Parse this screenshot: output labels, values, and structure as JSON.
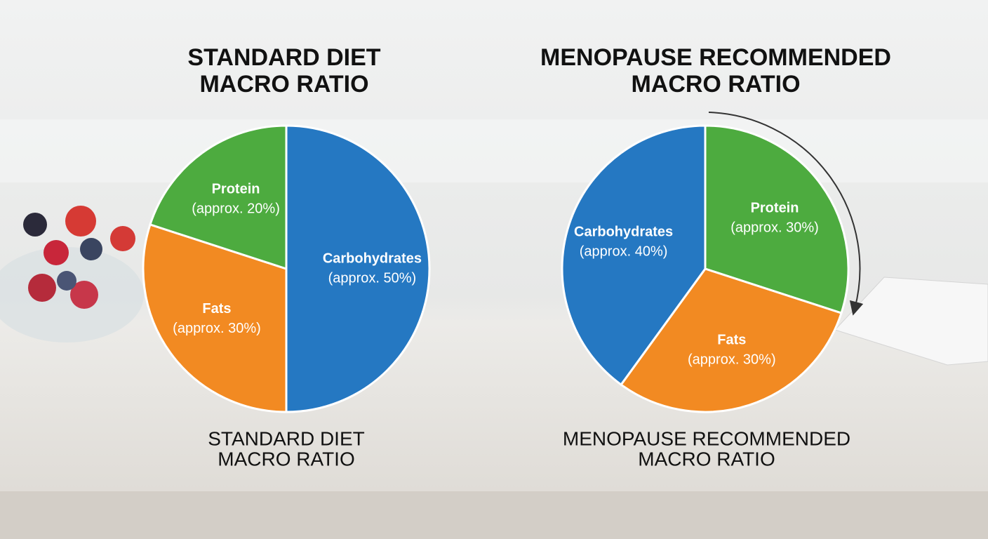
{
  "chart_data": [
    {
      "type": "pie",
      "title": [
        "STANDARD DIET",
        "MACRO RATIO"
      ],
      "caption": [
        "STANDARD DIET",
        "MACRO RATIO"
      ],
      "categories": [
        "Carbohydrates",
        "Fats",
        "Protein"
      ],
      "values": [
        50,
        30,
        20
      ],
      "value_labels": [
        "(approx. 50%)",
        "(approx. 30%)",
        "(approx. 20%)"
      ],
      "colors": [
        "#2578c2",
        "#f28a22",
        "#4dab3f"
      ]
    },
    {
      "type": "pie",
      "title": [
        "MENOPAUSE RECOMMENDED",
        "MACRO RATIO"
      ],
      "caption": [
        "MENOPAUSE RECOMMENDED",
        "MACRO RATIO"
      ],
      "categories": [
        "Protein",
        "Fats",
        "Carbohydrates"
      ],
      "values": [
        30,
        30,
        40
      ],
      "value_labels": [
        "(approx. 30%)",
        "(approx. 30%)",
        "(approx. 40%)"
      ],
      "colors": [
        "#4dab3f",
        "#f28a22",
        "#2578c2"
      ]
    }
  ]
}
